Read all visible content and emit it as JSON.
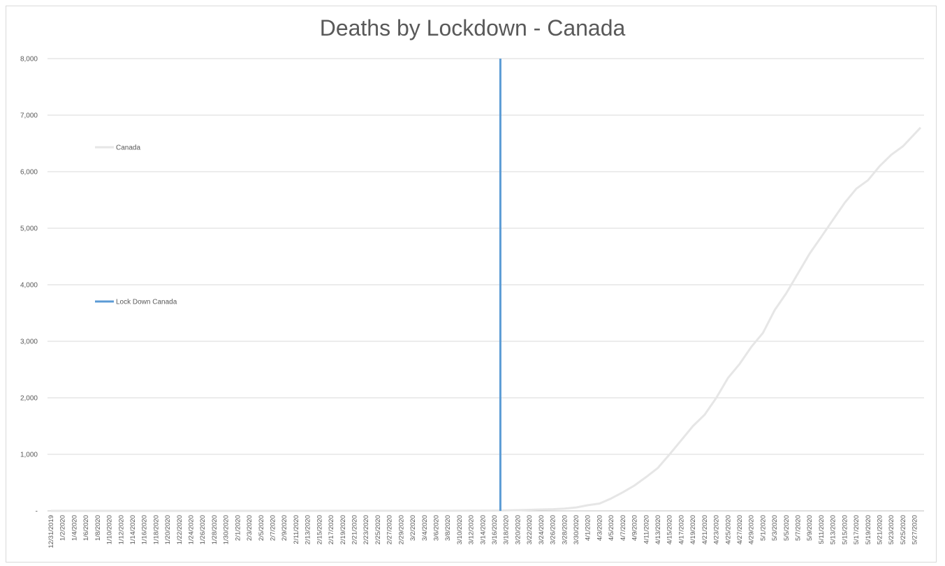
{
  "chart_data": {
    "type": "line",
    "title": "Deaths by Lockdown - Canada",
    "xlabel": "",
    "ylabel": "",
    "ylim": [
      0,
      8000
    ],
    "y_ticks": [
      "-",
      "1,000",
      "2,000",
      "3,000",
      "4,000",
      "5,000",
      "6,000",
      "7,000",
      "8,000"
    ],
    "x_range": [
      "12/31/2019",
      "5/28/2020"
    ],
    "x_tick_labels": [
      "12/31/2019",
      "1/2/2020",
      "1/4/2020",
      "1/6/2020",
      "1/8/2020",
      "1/10/2020",
      "1/12/2020",
      "1/14/2020",
      "1/16/2020",
      "1/18/2020",
      "1/20/2020",
      "1/22/2020",
      "1/24/2020",
      "1/26/2020",
      "1/28/2020",
      "1/30/2020",
      "2/1/2020",
      "2/3/2020",
      "2/5/2020",
      "2/7/2020",
      "2/9/2020",
      "2/11/2020",
      "2/13/2020",
      "2/15/2020",
      "2/17/2020",
      "2/19/2020",
      "2/21/2020",
      "2/23/2020",
      "2/25/2020",
      "2/27/2020",
      "2/29/2020",
      "3/2/2020",
      "3/4/2020",
      "3/6/2020",
      "3/8/2020",
      "3/10/2020",
      "3/12/2020",
      "3/14/2020",
      "3/16/2020",
      "3/18/2020",
      "3/20/2020",
      "3/22/2020",
      "3/24/2020",
      "3/26/2020",
      "3/28/2020",
      "3/30/2020",
      "4/1/2020",
      "4/3/2020",
      "4/5/2020",
      "4/7/2020",
      "4/9/2020",
      "4/11/2020",
      "4/13/2020",
      "4/15/2020",
      "4/17/2020",
      "4/19/2020",
      "4/21/2020",
      "4/23/2020",
      "4/25/2020",
      "4/27/2020",
      "4/29/2020",
      "5/1/2020",
      "5/3/2020",
      "5/5/2020",
      "5/7/2020",
      "5/9/2020",
      "5/11/2020",
      "5/13/2020",
      "5/15/2020",
      "5/17/2020",
      "5/19/2020",
      "5/21/2020",
      "5/23/2020",
      "5/25/2020",
      "5/27/2020"
    ],
    "grid": true,
    "legend_position": "left",
    "series": [
      {
        "name": "Canada",
        "color": "#e6e6e6",
        "points": [
          {
            "x": "12/31/2019",
            "y": 0
          },
          {
            "x": "3/8/2020",
            "y": 1
          },
          {
            "x": "3/16/2020",
            "y": 5
          },
          {
            "x": "3/20/2020",
            "y": 12
          },
          {
            "x": "3/24/2020",
            "y": 25
          },
          {
            "x": "3/26/2020",
            "y": 30
          },
          {
            "x": "3/28/2020",
            "y": 40
          },
          {
            "x": "3/30/2020",
            "y": 60
          },
          {
            "x": "4/1/2020",
            "y": 100
          },
          {
            "x": "4/3/2020",
            "y": 130
          },
          {
            "x": "4/5/2020",
            "y": 220
          },
          {
            "x": "4/7/2020",
            "y": 330
          },
          {
            "x": "4/9/2020",
            "y": 450
          },
          {
            "x": "4/11/2020",
            "y": 600
          },
          {
            "x": "4/13/2020",
            "y": 760
          },
          {
            "x": "4/15/2020",
            "y": 1000
          },
          {
            "x": "4/17/2020",
            "y": 1250
          },
          {
            "x": "4/19/2020",
            "y": 1500
          },
          {
            "x": "4/21/2020",
            "y": 1700
          },
          {
            "x": "4/23/2020",
            "y": 2000
          },
          {
            "x": "4/25/2020",
            "y": 2350
          },
          {
            "x": "4/27/2020",
            "y": 2600
          },
          {
            "x": "4/29/2020",
            "y": 2900
          },
          {
            "x": "5/1/2020",
            "y": 3150
          },
          {
            "x": "5/3/2020",
            "y": 3550
          },
          {
            "x": "5/5/2020",
            "y": 3850
          },
          {
            "x": "5/7/2020",
            "y": 4200
          },
          {
            "x": "5/9/2020",
            "y": 4550
          },
          {
            "x": "5/11/2020",
            "y": 4850
          },
          {
            "x": "5/13/2020",
            "y": 5150
          },
          {
            "x": "5/15/2020",
            "y": 5450
          },
          {
            "x": "5/17/2020",
            "y": 5700
          },
          {
            "x": "5/19/2020",
            "y": 5850
          },
          {
            "x": "5/21/2020",
            "y": 6100
          },
          {
            "x": "5/23/2020",
            "y": 6300
          },
          {
            "x": "5/25/2020",
            "y": 6450
          },
          {
            "x": "5/28/2020",
            "y": 6780
          }
        ]
      },
      {
        "name": "Lock Down Canada",
        "color": "#5b9bd5",
        "type": "vertical-line",
        "x": "3/17/2020",
        "y_from": 0,
        "y_to": 8000
      }
    ]
  }
}
